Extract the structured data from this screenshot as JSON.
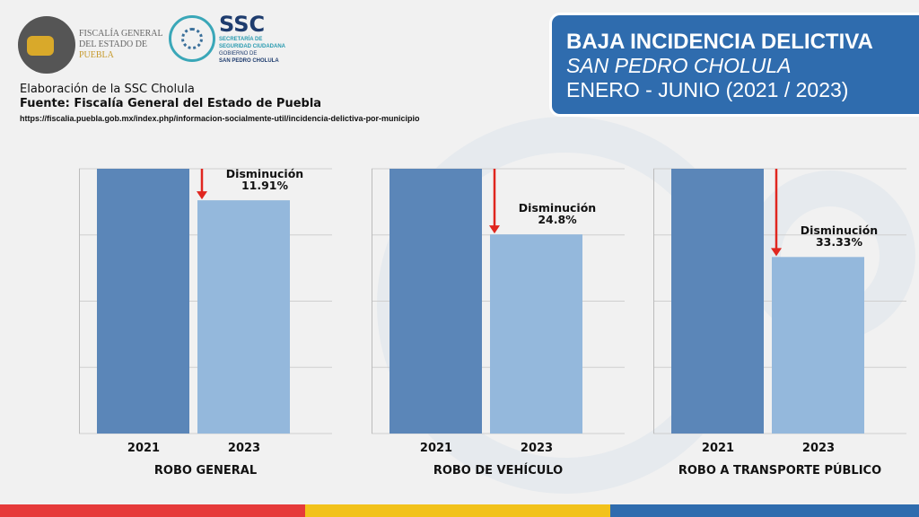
{
  "logos": {
    "fiscalia": [
      "FISCALÍA GENERAL",
      "DEL ESTADO DE",
      "PUEBLA"
    ],
    "ssc": "SSC",
    "ssc_sub": [
      "SECRETARÍA DE",
      "SEGURIDAD CIUDADANA",
      "GOBIERNO DE",
      "SAN PEDRO CHOLULA"
    ]
  },
  "credits": {
    "line1": "Elaboración de la SSC Cholula",
    "line2": "Fuente: Fiscalía General del Estado de Puebla",
    "url": "https://fiscalia.puebla.gob.mx/index.php/informacion-socialmente-util/incidencia-delictiva-por-municipio"
  },
  "title": {
    "line1": "BAJA INCIDENCIA DELICTIVA",
    "line2": "SAN PEDRO CHOLULA",
    "line3": "ENERO - JUNIO (2021 / 2023)"
  },
  "colors": {
    "bar2021": "#5b86b8",
    "bar2023": "#94b8dc",
    "arrow": "#e0261f",
    "title_bg": "#2f6cae",
    "stripe_red": "#e63a3a",
    "stripe_yellow": "#f2c21b",
    "stripe_blue": "#2f6cae"
  },
  "chart_data": [
    {
      "type": "bar",
      "title": "ROBO GENERAL",
      "categories": [
        "2021",
        "2023"
      ],
      "values": [
        100,
        88.09
      ],
      "annotation": [
        "Disminución",
        "11.91%"
      ],
      "ylim": [
        0,
        100
      ],
      "grid": true
    },
    {
      "type": "bar",
      "title": "ROBO DE VEHÍCULO",
      "categories": [
        "2021",
        "2023"
      ],
      "values": [
        100,
        75.2
      ],
      "annotation": [
        "Disminución",
        "24.8%"
      ],
      "ylim": [
        0,
        100
      ],
      "grid": true
    },
    {
      "type": "bar",
      "title": "ROBO A TRANSPORTE PÚBLICO",
      "categories": [
        "2021",
        "2023"
      ],
      "values": [
        100,
        66.67
      ],
      "annotation": [
        "Disminución",
        "33.33%"
      ],
      "ylim": [
        0,
        100
      ],
      "grid": true
    }
  ]
}
